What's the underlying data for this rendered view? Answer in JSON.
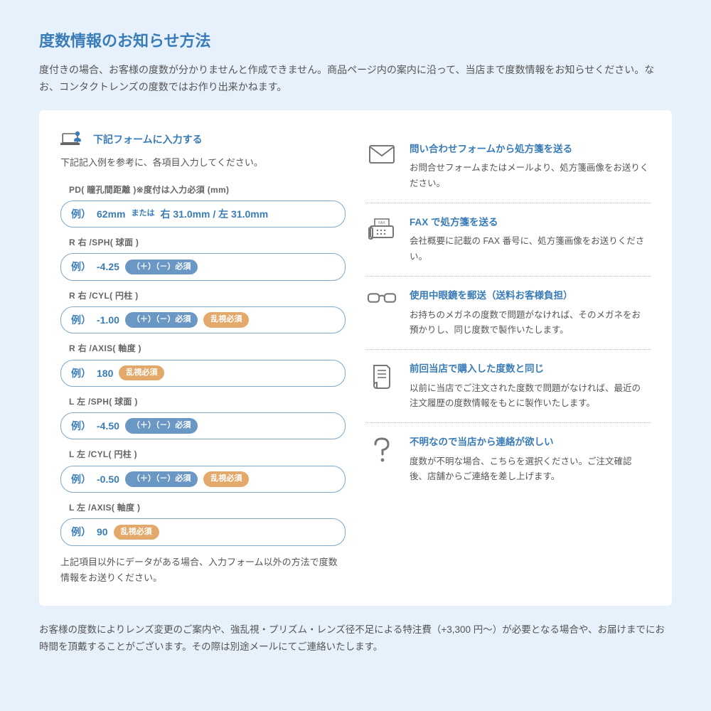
{
  "heading": "度数情報のお知らせ方法",
  "subtitle": "度付きの場合、お客様の度数が分かりませんと作成できません。商品ページ内の案内に沿って、当店まで度数情報をお知らせください。なお、コンタクトレンズの度数ではお作り出来かねます。",
  "form": {
    "title": "下記フォームに入力する",
    "instruction": "下記記入例を参考に、各項目入力してください。",
    "fields": [
      {
        "label": "PD( 瞳孔間距離 )※度付は入力必須 (mm)",
        "prefix": "例）",
        "value": "62mm",
        "suffix1": " または ",
        "value2": "右 31.0mm / 左 31.0mm",
        "pills": []
      },
      {
        "label": "R 右 /SPH( 球面 )",
        "prefix": "例）",
        "value": "-4.25",
        "pills": [
          {
            "text": "（＋）（－）必須",
            "color": "blue"
          }
        ]
      },
      {
        "label": "R 右 /CYL( 円柱 )",
        "prefix": "例）",
        "value": "-1.00",
        "pills": [
          {
            "text": "（＋）（－）必須",
            "color": "blue"
          },
          {
            "text": "乱視必須",
            "color": "orange"
          }
        ]
      },
      {
        "label": "R 右 /AXIS( 軸度 )",
        "prefix": "例）",
        "value": "180",
        "pills": [
          {
            "text": "乱視必須",
            "color": "orange"
          }
        ]
      },
      {
        "label": "L 左 /SPH( 球面 )",
        "prefix": "例）",
        "value": "-4.50",
        "pills": [
          {
            "text": "（＋）（－）必須",
            "color": "blue"
          }
        ]
      },
      {
        "label": "L 左 /CYL( 円柱 )",
        "prefix": "例）",
        "value": "-0.50",
        "pills": [
          {
            "text": "（＋）（－）必須",
            "color": "blue"
          },
          {
            "text": "乱視必須",
            "color": "orange"
          }
        ]
      },
      {
        "label": "L 左 /AXIS( 軸度 )",
        "prefix": "例）",
        "value": "90",
        "pills": [
          {
            "text": "乱視必須",
            "color": "orange"
          }
        ]
      }
    ],
    "bottomNote": "上記項目以外にデータがある場合、入力フォーム以外の方法で度数情報をお送りください。"
  },
  "methods": [
    {
      "title": "問い合わせフォームから処方箋を送る",
      "desc": "お問合せフォームまたはメールより、処方箋画像をお送りください。",
      "icon": "mail"
    },
    {
      "title": "FAX で処方箋を送る",
      "desc": "会社概要に記載の FAX 番号に、処方箋画像をお送りください。",
      "icon": "fax"
    },
    {
      "title": "使用中眼鏡を郵送（送料お客様負担）",
      "desc": "お持ちのメガネの度数で問題がなければ、そのメガネをお預かりし、同じ度数で製作いたします。",
      "icon": "glasses"
    },
    {
      "title": "前回当店で購入した度数と同じ",
      "desc": "以前に当店でご注文された度数で問題がなければ、最近の注文履歴の度数情報をもとに製作いたします。",
      "icon": "doc"
    },
    {
      "title": "不明なので当店から連絡が欲しい",
      "desc": "度数が不明な場合、こちらを選択ください。ご注文確認後、店舗からご連絡を差し上げます。",
      "icon": "question"
    }
  ],
  "footer": "お客様の度数によりレンズ変更のご案内や、強乱視・プリズム・レンズ径不足による特注費（+3,300 円～）が必要となる場合や、お届けまでにお時間を頂戴することがございます。その際は別途メールにてご連絡いたします。",
  "colors": {
    "primary": "#3a7cb8",
    "pillBlue": "#6a97c4",
    "pillOrange": "#e3a96a",
    "border": "#7fa8c9",
    "bg": "#e7f1fc"
  }
}
